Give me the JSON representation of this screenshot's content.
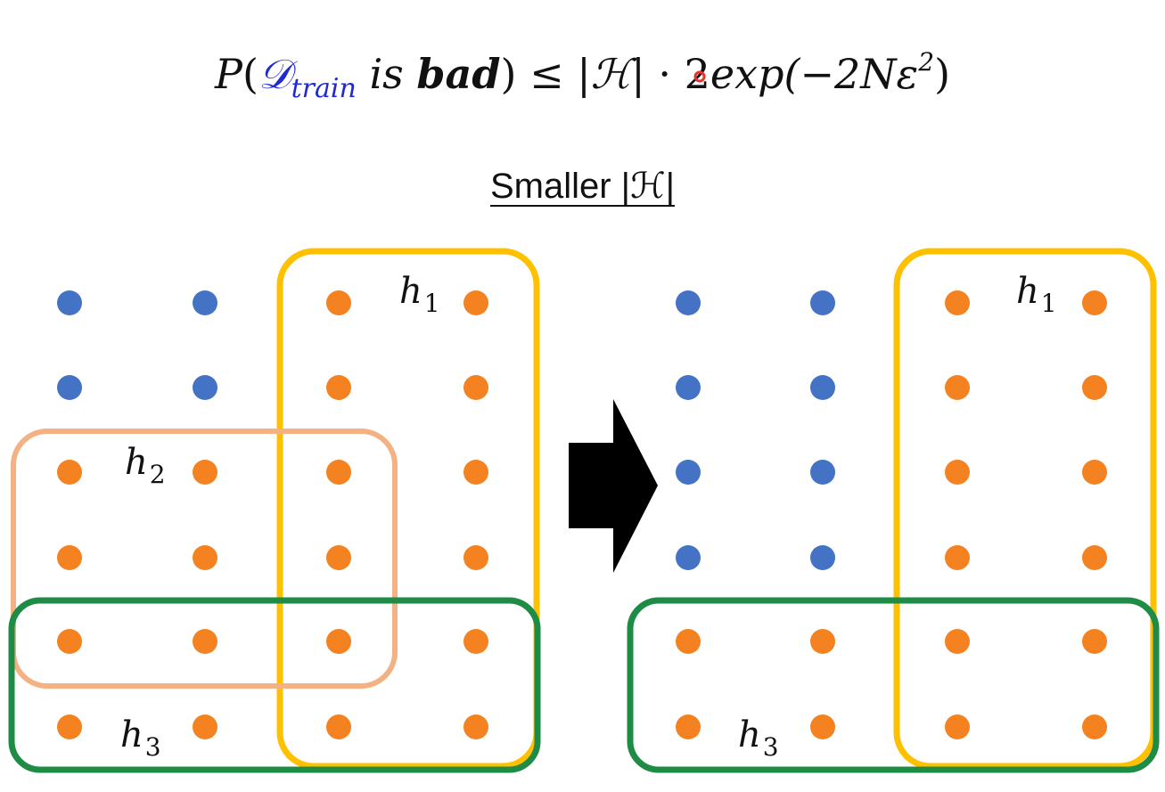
{
  "formula": {
    "p": "P",
    "open_paren": "(",
    "d_symbol": "𝒟",
    "d_subscript": "train",
    "is": "is",
    "bad": "bad",
    "close_paren": ")",
    "leq": "≤",
    "h_card": "|ℋ|",
    "dot": "·",
    "two": "2",
    "exp": "exp",
    "exp_arg_open": "(−2Nε",
    "exp_arg_sup": "2",
    "exp_arg_close": ")"
  },
  "subtitle": "Smaller |ℋ|",
  "colors": {
    "blue_dot": "#4472c4",
    "orange_dot": "#f58220",
    "h1_border": "#ffc000",
    "h2_border": "#f4b183",
    "h3_border": "#1e8c45",
    "arrow": "#000000",
    "cursor_marker": "#e8322a"
  },
  "left_grid": {
    "rows": [
      [
        "blue",
        "blue",
        "orange",
        "orange"
      ],
      [
        "blue",
        "blue",
        "orange",
        "orange"
      ],
      [
        "orange",
        "orange",
        "orange",
        "orange"
      ],
      [
        "orange",
        "orange",
        "orange",
        "orange"
      ],
      [
        "orange",
        "orange",
        "orange",
        "orange"
      ],
      [
        "orange",
        "orange",
        "orange",
        "orange"
      ]
    ],
    "labels": {
      "h1": "h",
      "h1_sub": "1",
      "h2": "h",
      "h2_sub": "2",
      "h3": "h",
      "h3_sub": "3"
    }
  },
  "right_grid": {
    "rows": [
      [
        "blue",
        "blue",
        "orange",
        "orange"
      ],
      [
        "blue",
        "blue",
        "orange",
        "orange"
      ],
      [
        "blue",
        "blue",
        "orange",
        "orange"
      ],
      [
        "blue",
        "blue",
        "orange",
        "orange"
      ],
      [
        "orange",
        "orange",
        "orange",
        "orange"
      ],
      [
        "orange",
        "orange",
        "orange",
        "orange"
      ]
    ],
    "labels": {
      "h1": "h",
      "h1_sub": "1",
      "h3": "h",
      "h3_sub": "3"
    }
  },
  "arrow_icon": "right-arrow-icon"
}
